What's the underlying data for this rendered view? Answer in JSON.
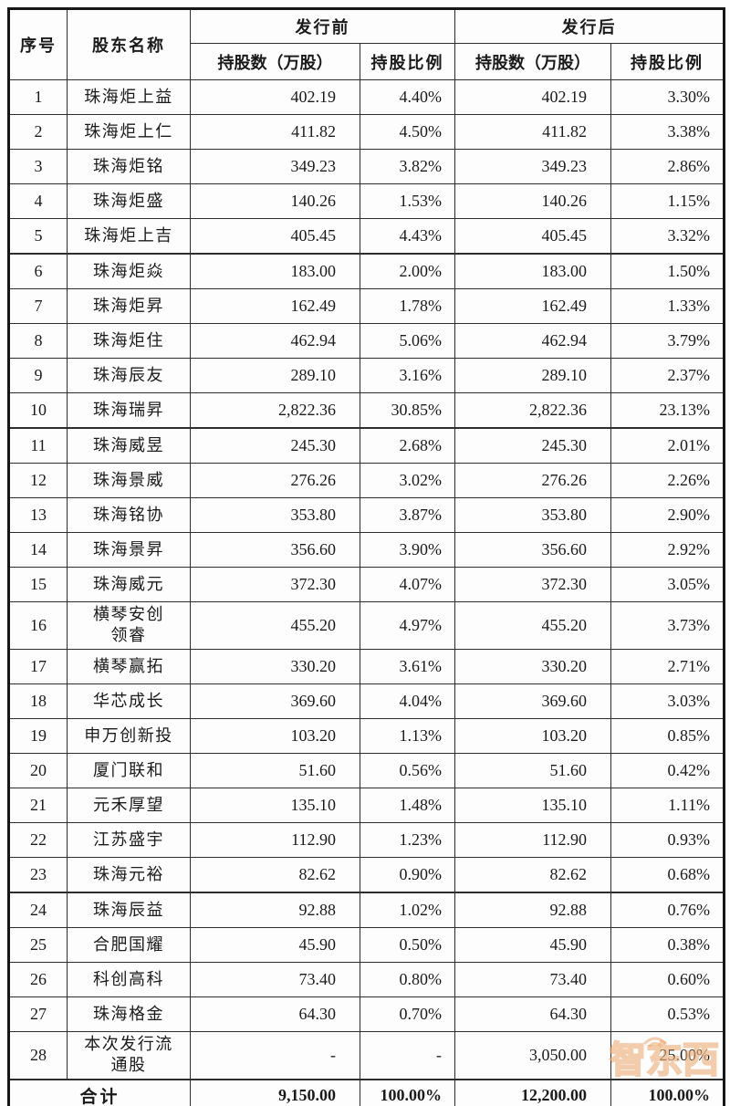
{
  "table": {
    "header": {
      "col_seq": "序号",
      "col_name": "股东名称",
      "group_before": "发行前",
      "group_after": "发行后",
      "col_shares": "持股数（万股）",
      "col_ratio": "持股比例"
    },
    "rows": [
      {
        "seq": "1",
        "name": "珠海炬上益",
        "pre_shares": "402.19",
        "pre_ratio": "4.40%",
        "post_shares": "402.19",
        "post_ratio": "3.30%"
      },
      {
        "seq": "2",
        "name": "珠海炬上仁",
        "pre_shares": "411.82",
        "pre_ratio": "4.50%",
        "post_shares": "411.82",
        "post_ratio": "3.38%"
      },
      {
        "seq": "3",
        "name": "珠海炬铭",
        "pre_shares": "349.23",
        "pre_ratio": "3.82%",
        "post_shares": "349.23",
        "post_ratio": "2.86%"
      },
      {
        "seq": "4",
        "name": "珠海炬盛",
        "pre_shares": "140.26",
        "pre_ratio": "1.53%",
        "post_shares": "140.26",
        "post_ratio": "1.15%"
      },
      {
        "seq": "5",
        "name": "珠海炬上吉",
        "pre_shares": "405.45",
        "pre_ratio": "4.43%",
        "post_shares": "405.45",
        "post_ratio": "3.32%"
      },
      {
        "seq": "6",
        "name": "珠海炬焱",
        "pre_shares": "183.00",
        "pre_ratio": "2.00%",
        "post_shares": "183.00",
        "post_ratio": "1.50%"
      },
      {
        "seq": "7",
        "name": "珠海炬昇",
        "pre_shares": "162.49",
        "pre_ratio": "1.78%",
        "post_shares": "162.49",
        "post_ratio": "1.33%"
      },
      {
        "seq": "8",
        "name": "珠海炬住",
        "pre_shares": "462.94",
        "pre_ratio": "5.06%",
        "post_shares": "462.94",
        "post_ratio": "3.79%"
      },
      {
        "seq": "9",
        "name": "珠海辰友",
        "pre_shares": "289.10",
        "pre_ratio": "3.16%",
        "post_shares": "289.10",
        "post_ratio": "2.37%"
      },
      {
        "seq": "10",
        "name": "珠海瑞昇",
        "pre_shares": "2,822.36",
        "pre_ratio": "30.85%",
        "post_shares": "2,822.36",
        "post_ratio": "23.13%"
      },
      {
        "seq": "11",
        "name": "珠海威昱",
        "pre_shares": "245.30",
        "pre_ratio": "2.68%",
        "post_shares": "245.30",
        "post_ratio": "2.01%"
      },
      {
        "seq": "12",
        "name": "珠海景威",
        "pre_shares": "276.26",
        "pre_ratio": "3.02%",
        "post_shares": "276.26",
        "post_ratio": "2.26%"
      },
      {
        "seq": "13",
        "name": "珠海铭协",
        "pre_shares": "353.80",
        "pre_ratio": "3.87%",
        "post_shares": "353.80",
        "post_ratio": "2.90%"
      },
      {
        "seq": "14",
        "name": "珠海景昇",
        "pre_shares": "356.60",
        "pre_ratio": "3.90%",
        "post_shares": "356.60",
        "post_ratio": "2.92%"
      },
      {
        "seq": "15",
        "name": "珠海威元",
        "pre_shares": "372.30",
        "pre_ratio": "4.07%",
        "post_shares": "372.30",
        "post_ratio": "3.05%"
      },
      {
        "seq": "16",
        "name": "横琴安创\n领睿",
        "pre_shares": "455.20",
        "pre_ratio": "4.97%",
        "post_shares": "455.20",
        "post_ratio": "3.73%"
      },
      {
        "seq": "17",
        "name": "横琴赢拓",
        "pre_shares": "330.20",
        "pre_ratio": "3.61%",
        "post_shares": "330.20",
        "post_ratio": "2.71%"
      },
      {
        "seq": "18",
        "name": "华芯成长",
        "pre_shares": "369.60",
        "pre_ratio": "4.04%",
        "post_shares": "369.60",
        "post_ratio": "3.03%"
      },
      {
        "seq": "19",
        "name": "申万创新投",
        "pre_shares": "103.20",
        "pre_ratio": "1.13%",
        "post_shares": "103.20",
        "post_ratio": "0.85%"
      },
      {
        "seq": "20",
        "name": "厦门联和",
        "pre_shares": "51.60",
        "pre_ratio": "0.56%",
        "post_shares": "51.60",
        "post_ratio": "0.42%"
      },
      {
        "seq": "21",
        "name": "元禾厚望",
        "pre_shares": "135.10",
        "pre_ratio": "1.48%",
        "post_shares": "135.10",
        "post_ratio": "1.11%"
      },
      {
        "seq": "22",
        "name": "江苏盛宇",
        "pre_shares": "112.90",
        "pre_ratio": "1.23%",
        "post_shares": "112.90",
        "post_ratio": "0.93%"
      },
      {
        "seq": "23",
        "name": "珠海元裕",
        "pre_shares": "82.62",
        "pre_ratio": "0.90%",
        "post_shares": "82.62",
        "post_ratio": "0.68%"
      },
      {
        "seq": "24",
        "name": "珠海辰益",
        "pre_shares": "92.88",
        "pre_ratio": "1.02%",
        "post_shares": "92.88",
        "post_ratio": "0.76%"
      },
      {
        "seq": "25",
        "name": "合肥国耀",
        "pre_shares": "45.90",
        "pre_ratio": "0.50%",
        "post_shares": "45.90",
        "post_ratio": "0.38%"
      },
      {
        "seq": "26",
        "name": "科创高科",
        "pre_shares": "73.40",
        "pre_ratio": "0.80%",
        "post_shares": "73.40",
        "post_ratio": "0.60%"
      },
      {
        "seq": "27",
        "name": "珠海格金",
        "pre_shares": "64.30",
        "pre_ratio": "0.70%",
        "post_shares": "64.30",
        "post_ratio": "0.53%"
      },
      {
        "seq": "28",
        "name": "本次发行流\n通股",
        "pre_shares": "-",
        "pre_ratio": "-",
        "post_shares": "3,050.00",
        "post_ratio": "25.00%"
      }
    ],
    "total": {
      "label": "合计",
      "pre_shares": "9,150.00",
      "pre_ratio": "100.00%",
      "post_shares": "12,200.00",
      "post_ratio": "100.00%"
    }
  },
  "watermark": {
    "text": "智东西",
    "accent_color": "#e89858"
  }
}
